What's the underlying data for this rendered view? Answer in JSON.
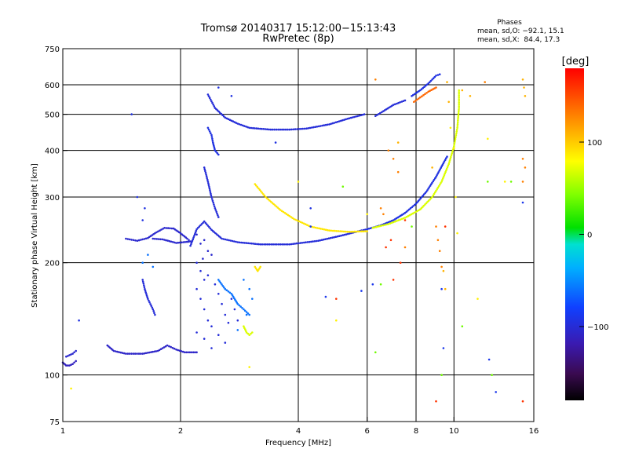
{
  "chart_data": {
    "type": "scatter",
    "title": "Tromsø 20140317 15:12:00−15:13:43",
    "subtitle": "RwPretec (8p)",
    "xlabel": "Frequency [MHz]",
    "ylabel": "Stationary phase Virtual Height [km]",
    "x_scale": "log",
    "y_scale": "log",
    "xlim": [
      1,
      16
    ],
    "ylim": [
      75,
      750
    ],
    "x_ticks": [
      1,
      2,
      4,
      6,
      8,
      10,
      16
    ],
    "y_ticks": [
      75,
      100,
      200,
      300,
      400,
      500,
      600,
      750
    ],
    "grid_x": [
      2,
      4,
      6,
      8,
      10
    ],
    "grid_y": [
      100,
      200,
      300,
      400,
      500,
      600
    ],
    "stats": {
      "header": "Phases",
      "line1": "mean, sd,O: −92.1, 15.1",
      "line2": "mean, sd,X:  84.4, 17.3"
    },
    "colorbar": {
      "label": "[deg]",
      "range": [
        -180,
        180
      ],
      "ticks": [
        100,
        0,
        -100
      ],
      "tick_labels": [
        "100",
        "0",
        "−100"
      ]
    },
    "traces": [
      {
        "phase": -105,
        "points": [
          [
            1.02,
            112
          ],
          [
            1.04,
            113
          ],
          [
            1.06,
            114
          ],
          [
            1.08,
            116
          ]
        ]
      },
      {
        "phase": -112,
        "points": [
          [
            1.0,
            108
          ],
          [
            1.02,
            106
          ],
          [
            1.04,
            106
          ],
          [
            1.06,
            107
          ],
          [
            1.08,
            109
          ]
        ]
      },
      {
        "phase": -108,
        "points": [
          [
            1.3,
            120
          ],
          [
            1.35,
            116
          ],
          [
            1.45,
            114
          ],
          [
            1.6,
            114
          ],
          [
            1.75,
            116
          ],
          [
            1.85,
            120
          ],
          [
            1.95,
            117
          ],
          [
            2.05,
            115
          ],
          [
            2.2,
            115
          ]
        ]
      },
      {
        "phase": -105,
        "points": [
          [
            1.45,
            232
          ],
          [
            1.55,
            229
          ],
          [
            1.65,
            233
          ],
          [
            1.72,
            240
          ],
          [
            1.82,
            248
          ],
          [
            1.92,
            247
          ],
          [
            2.0,
            240
          ],
          [
            2.08,
            232
          ],
          [
            2.12,
            228
          ],
          [
            1.95,
            226
          ],
          [
            1.8,
            231
          ],
          [
            1.7,
            232
          ]
        ]
      },
      {
        "phase": -100,
        "points": [
          [
            2.12,
            222
          ],
          [
            2.2,
            246
          ],
          [
            2.3,
            258
          ],
          [
            2.4,
            245
          ],
          [
            2.55,
            232
          ],
          [
            2.8,
            227
          ],
          [
            3.2,
            224
          ],
          [
            3.8,
            224
          ],
          [
            4.5,
            229
          ],
          [
            5.2,
            237
          ],
          [
            5.8,
            244
          ],
          [
            6.0,
            246
          ]
        ]
      },
      {
        "phase": 90,
        "points": [
          [
            3.1,
            325
          ],
          [
            3.3,
            300
          ],
          [
            3.6,
            277
          ],
          [
            3.9,
            262
          ],
          [
            4.3,
            250
          ],
          [
            4.8,
            244
          ],
          [
            5.4,
            242
          ],
          [
            6.0,
            243
          ]
        ]
      },
      {
        "phase": -95,
        "points": [
          [
            6.0,
            246
          ],
          [
            6.5,
            252
          ],
          [
            7.0,
            260
          ],
          [
            7.5,
            272
          ],
          [
            8.0,
            288
          ],
          [
            8.5,
            310
          ],
          [
            9.0,
            340
          ],
          [
            9.4,
            370
          ],
          [
            9.6,
            385
          ]
        ]
      },
      {
        "phase": 70,
        "points": [
          [
            6.2,
            248
          ],
          [
            6.8,
            254
          ],
          [
            7.5,
            264
          ],
          [
            8.2,
            278
          ],
          [
            8.8,
            300
          ],
          [
            9.3,
            330
          ],
          [
            9.7,
            368
          ],
          [
            10.0,
            410
          ],
          [
            10.2,
            460
          ],
          [
            10.3,
            520
          ],
          [
            10.3,
            580
          ]
        ]
      },
      {
        "phase": -100,
        "points": [
          [
            2.35,
            565
          ],
          [
            2.45,
            520
          ],
          [
            2.6,
            490
          ],
          [
            2.8,
            472
          ],
          [
            3.0,
            460
          ],
          [
            3.4,
            455
          ],
          [
            3.8,
            455
          ],
          [
            4.2,
            458
          ],
          [
            4.8,
            470
          ],
          [
            5.4,
            488
          ],
          [
            5.9,
            500
          ]
        ]
      },
      {
        "phase": -95,
        "points": [
          [
            2.35,
            460
          ],
          [
            2.4,
            440
          ],
          [
            2.42,
            420
          ],
          [
            2.45,
            400
          ],
          [
            2.5,
            390
          ]
        ]
      },
      {
        "phase": -100,
        "points": [
          [
            2.3,
            360
          ],
          [
            2.35,
            330
          ],
          [
            2.4,
            300
          ],
          [
            2.45,
            280
          ],
          [
            2.5,
            265
          ]
        ]
      },
      {
        "phase": -100,
        "points": [
          [
            6.3,
            495
          ],
          [
            6.6,
            510
          ],
          [
            7.0,
            530
          ],
          [
            7.5,
            545
          ]
        ]
      },
      {
        "phase": -95,
        "points": [
          [
            7.8,
            560
          ],
          [
            8.2,
            580
          ],
          [
            8.6,
            605
          ],
          [
            9.0,
            635
          ],
          [
            9.2,
            640
          ]
        ]
      },
      {
        "phase": 140,
        "points": [
          [
            7.9,
            540
          ],
          [
            8.2,
            555
          ],
          [
            8.6,
            575
          ],
          [
            9.0,
            590
          ]
        ]
      },
      {
        "phase": -100,
        "points": [
          [
            1.6,
            180
          ],
          [
            1.62,
            170
          ],
          [
            1.65,
            160
          ],
          [
            1.7,
            150
          ],
          [
            1.72,
            145
          ]
        ]
      },
      {
        "phase": -60,
        "points": [
          [
            2.5,
            180
          ],
          [
            2.6,
            170
          ],
          [
            2.7,
            165
          ],
          [
            2.8,
            155
          ],
          [
            2.9,
            150
          ],
          [
            3.0,
            145
          ]
        ]
      },
      {
        "phase": 70,
        "points": [
          [
            2.9,
            135
          ],
          [
            2.95,
            130
          ],
          [
            3.0,
            128
          ],
          [
            3.05,
            130
          ]
        ]
      },
      {
        "phase": 90,
        "points": [
          [
            3.1,
            195
          ],
          [
            3.15,
            190
          ],
          [
            3.2,
            195
          ]
        ]
      }
    ],
    "scatter": [
      {
        "phase": -100,
        "points": [
          [
            2.2,
            200
          ],
          [
            2.25,
            190
          ],
          [
            2.3,
            180
          ],
          [
            2.2,
            170
          ],
          [
            2.25,
            160
          ],
          [
            2.3,
            150
          ],
          [
            2.35,
            140
          ],
          [
            2.2,
            130
          ],
          [
            2.3,
            125
          ],
          [
            2.4,
            118
          ],
          [
            2.35,
            185
          ],
          [
            2.45,
            175
          ],
          [
            2.5,
            165
          ],
          [
            2.55,
            155
          ],
          [
            2.6,
            145
          ],
          [
            2.65,
            138
          ],
          [
            2.4,
            135
          ],
          [
            2.5,
            128
          ],
          [
            2.6,
            122
          ],
          [
            2.7,
            160
          ],
          [
            2.75,
            150
          ],
          [
            2.8,
            140
          ]
        ]
      },
      {
        "phase": -105,
        "points": [
          [
            2.3,
            230
          ],
          [
            2.25,
            225
          ],
          [
            2.35,
            215
          ],
          [
            2.2,
            238
          ],
          [
            2.28,
            205
          ],
          [
            2.4,
            210
          ]
        ]
      },
      {
        "phase": -95,
        "points": [
          [
            1.6,
            260
          ],
          [
            1.62,
            280
          ],
          [
            1.55,
            300
          ],
          [
            1.5,
            500
          ],
          [
            1.1,
            140
          ],
          [
            4.3,
            280
          ],
          [
            2.5,
            590
          ],
          [
            2.7,
            560
          ],
          [
            3.5,
            420
          ]
        ]
      },
      {
        "phase": 130,
        "points": [
          [
            6.3,
            620
          ],
          [
            6.8,
            400
          ],
          [
            7.0,
            380
          ],
          [
            7.2,
            350
          ],
          [
            6.5,
            280
          ],
          [
            6.6,
            270
          ],
          [
            7.5,
            220
          ],
          [
            9.1,
            230
          ],
          [
            9.2,
            215
          ],
          [
            9.0,
            250
          ],
          [
            9.3,
            195
          ],
          [
            12.0,
            610
          ],
          [
            15.0,
            380
          ],
          [
            15.2,
            360
          ],
          [
            15.0,
            330
          ]
        ]
      },
      {
        "phase": 110,
        "points": [
          [
            15.0,
            620
          ],
          [
            15.1,
            590
          ],
          [
            15.2,
            560
          ],
          [
            10.5,
            580
          ],
          [
            11.0,
            560
          ],
          [
            9.6,
            610
          ],
          [
            9.7,
            540
          ],
          [
            8.8,
            360
          ],
          [
            9.4,
            190
          ],
          [
            9.5,
            170
          ],
          [
            7.2,
            420
          ]
        ]
      },
      {
        "phase": 160,
        "points": [
          [
            6.9,
            230
          ],
          [
            6.7,
            220
          ],
          [
            7.3,
            200
          ],
          [
            5.0,
            160
          ],
          [
            7.0,
            180
          ],
          [
            7.5,
            260
          ],
          [
            9.5,
            250
          ],
          [
            9.0,
            85
          ],
          [
            15.0,
            85
          ]
        ]
      },
      {
        "phase": 40,
        "points": [
          [
            6.3,
            115
          ],
          [
            6.5,
            175
          ],
          [
            12.5,
            100
          ],
          [
            14.0,
            330
          ],
          [
            12.2,
            330
          ],
          [
            10.5,
            135
          ],
          [
            9.3,
            100
          ],
          [
            5.2,
            320
          ],
          [
            7.8,
            250
          ]
        ]
      },
      {
        "phase": -90,
        "points": [
          [
            4.7,
            162
          ],
          [
            5.8,
            168
          ],
          [
            6.2,
            175
          ],
          [
            4.3,
            250
          ],
          [
            9.3,
            170
          ],
          [
            9.4,
            118
          ],
          [
            12.3,
            110
          ],
          [
            12.8,
            90
          ],
          [
            15.0,
            290
          ]
        ]
      },
      {
        "phase": 85,
        "points": [
          [
            1.05,
            92
          ],
          [
            3.0,
            105
          ],
          [
            5.0,
            140
          ],
          [
            10.0,
            405
          ],
          [
            10.1,
            300
          ],
          [
            10.2,
            240
          ],
          [
            9.8,
            460
          ],
          [
            6.0,
            270
          ],
          [
            13.5,
            330
          ],
          [
            4.0,
            330
          ],
          [
            12.2,
            430
          ],
          [
            11.5,
            160
          ]
        ]
      },
      {
        "phase": -60,
        "points": [
          [
            1.6,
            200
          ],
          [
            1.65,
            210
          ],
          [
            1.7,
            195
          ],
          [
            2.9,
            180
          ],
          [
            3.0,
            170
          ],
          [
            3.05,
            160
          ],
          [
            2.8,
            132
          ],
          [
            2.95,
            145
          ]
        ]
      }
    ]
  }
}
